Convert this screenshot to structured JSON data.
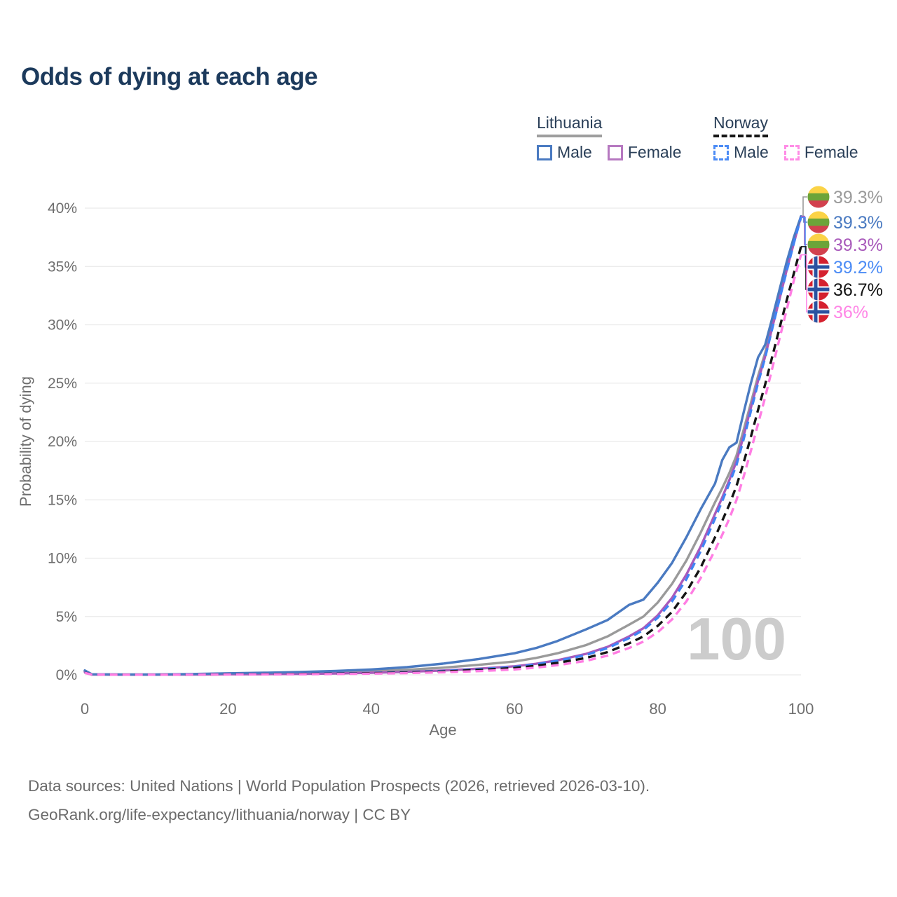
{
  "page": {
    "title": "Odds of dying at each age"
  },
  "legend": {
    "groups": [
      {
        "name": "Lithuania",
        "line_style": "solid",
        "underline_color": "#9e9e9e",
        "items": [
          {
            "label": "Male",
            "color": "#4a7ac1",
            "dashed": false
          },
          {
            "label": "Female",
            "color": "#b678c0",
            "dashed": false
          }
        ]
      },
      {
        "name": "Norway",
        "line_style": "dashed",
        "underline_color": "#161616",
        "items": [
          {
            "label": "Male",
            "color": "#4b8bf5",
            "dashed": true
          },
          {
            "label": "Female",
            "color": "#ff8ce6",
            "dashed": true
          }
        ]
      }
    ]
  },
  "chart_data": {
    "type": "line",
    "title": "Odds of dying at each age",
    "xlabel": "Age",
    "ylabel": "Probability of dying",
    "xlim": [
      0,
      100
    ],
    "ylim": [
      0,
      40
    ],
    "x_ticks": [
      0,
      20,
      40,
      60,
      80,
      100
    ],
    "y_ticks": [
      0,
      5,
      10,
      15,
      20,
      25,
      30,
      35,
      40
    ],
    "y_tick_suffix": "%",
    "grid": "horizontal-only",
    "legend_position": "top-right",
    "watermark": "100",
    "x": [
      0,
      1,
      5,
      10,
      15,
      20,
      25,
      30,
      35,
      40,
      45,
      50,
      55,
      60,
      63,
      66,
      70,
      73,
      76,
      78,
      80,
      82,
      84,
      86,
      88,
      89,
      90,
      91,
      92,
      93,
      94,
      95,
      96,
      97,
      98,
      99,
      100
    ],
    "series": [
      {
        "name": "Lithuania",
        "sex": "both",
        "color": "#9a9a9a",
        "dashed": false,
        "end_label": {
          "text": "39.3%",
          "color": "#9a9a9a",
          "flag": "lithuania-flag-icon"
        },
        "values": [
          0.3,
          0.04,
          0.02,
          0.02,
          0.05,
          0.09,
          0.13,
          0.17,
          0.23,
          0.31,
          0.43,
          0.61,
          0.86,
          1.15,
          1.45,
          1.85,
          2.55,
          3.3,
          4.3,
          5.0,
          6.2,
          7.8,
          9.8,
          12.2,
          14.8,
          16.0,
          17.3,
          18.8,
          21.0,
          23.3,
          25.6,
          27.6,
          30.0,
          32.4,
          34.8,
          37.1,
          39.3
        ]
      },
      {
        "name": "Lithuania Male",
        "sex": "male",
        "color": "#4a7ac1",
        "dashed": false,
        "end_label": {
          "text": "39.3%",
          "color": "#4a7ac1",
          "flag": "lithuania-flag-icon"
        },
        "values": [
          0.38,
          0.05,
          0.03,
          0.03,
          0.07,
          0.13,
          0.18,
          0.24,
          0.33,
          0.46,
          0.66,
          0.96,
          1.36,
          1.85,
          2.3,
          2.9,
          3.9,
          4.7,
          6.0,
          6.45,
          7.9,
          9.6,
          11.8,
          14.2,
          16.4,
          18.4,
          19.5,
          19.9,
          22.5,
          25.0,
          27.2,
          28.3,
          30.6,
          33.0,
          35.4,
          37.5,
          39.3
        ]
      },
      {
        "name": "Lithuania Female",
        "sex": "female",
        "color": "#a95bbb",
        "dashed": false,
        "end_label": {
          "text": "39.3%",
          "color": "#a95bbb",
          "flag": "lithuania-flag-icon"
        },
        "values": [
          0.26,
          0.03,
          0.02,
          0.02,
          0.03,
          0.05,
          0.06,
          0.08,
          0.12,
          0.18,
          0.26,
          0.37,
          0.53,
          0.73,
          0.95,
          1.25,
          1.8,
          2.4,
          3.3,
          4.0,
          5.1,
          6.6,
          8.6,
          11.0,
          13.8,
          15.2,
          16.7,
          18.3,
          20.5,
          22.9,
          25.2,
          27.3,
          29.8,
          32.2,
          34.7,
          37.0,
          39.3
        ]
      },
      {
        "name": "Norway Male",
        "sex": "male",
        "color": "#4183f4",
        "dashed": true,
        "end_label": {
          "text": "39.2%",
          "color": "#4b8bf5",
          "flag": "norway-flag-icon"
        },
        "values": [
          0.22,
          0.02,
          0.01,
          0.01,
          0.03,
          0.05,
          0.07,
          0.09,
          0.12,
          0.16,
          0.23,
          0.33,
          0.48,
          0.68,
          0.9,
          1.2,
          1.7,
          2.3,
          3.15,
          3.85,
          4.9,
          6.3,
          8.2,
          10.6,
          13.4,
          14.9,
          16.4,
          18.0,
          20.2,
          22.6,
          25.0,
          27.2,
          29.7,
          32.2,
          34.6,
          37.0,
          39.2
        ]
      },
      {
        "name": "Norway",
        "sex": "both",
        "color": "#141414",
        "dashed": true,
        "end_label": {
          "text": "36.7%",
          "color": "#141414",
          "flag": "norway-flag-icon"
        },
        "values": [
          0.2,
          0.02,
          0.01,
          0.01,
          0.02,
          0.04,
          0.06,
          0.08,
          0.1,
          0.14,
          0.2,
          0.29,
          0.42,
          0.59,
          0.78,
          1.03,
          1.45,
          1.95,
          2.7,
          3.3,
          4.2,
          5.4,
          7.1,
          9.2,
          11.8,
          13.2,
          14.6,
          16.2,
          18.2,
          20.4,
          22.7,
          24.9,
          27.3,
          29.7,
          32.1,
          34.4,
          36.7
        ]
      },
      {
        "name": "Norway Female",
        "sex": "female",
        "color": "#ff7de3",
        "dashed": true,
        "end_label": {
          "text": "36%",
          "color": "#ff85e6",
          "flag": "norway-flag-icon"
        },
        "values": [
          0.17,
          0.02,
          0.01,
          0.01,
          0.02,
          0.03,
          0.04,
          0.05,
          0.07,
          0.1,
          0.15,
          0.22,
          0.32,
          0.46,
          0.62,
          0.83,
          1.2,
          1.65,
          2.3,
          2.85,
          3.65,
          4.75,
          6.3,
          8.3,
          10.7,
          12.0,
          13.4,
          15.0,
          17.0,
          19.2,
          21.5,
          23.8,
          26.3,
          28.8,
          31.3,
          33.8,
          36.0
        ]
      }
    ]
  },
  "flag_colors": {
    "lithuania": {
      "yellow": "#FBD346",
      "green": "#6CA439",
      "red": "#D2414E"
    },
    "norway": {
      "red": "#D5212F",
      "navy": "#2B52A0",
      "white": "#FFFFFF"
    }
  },
  "footer": {
    "line1": "Data sources: United Nations | World Population Prospects (2026, retrieved 2026-03-10).",
    "line2": "GeoRank.org/life-expectancy/lithuania/norway | CC BY"
  }
}
